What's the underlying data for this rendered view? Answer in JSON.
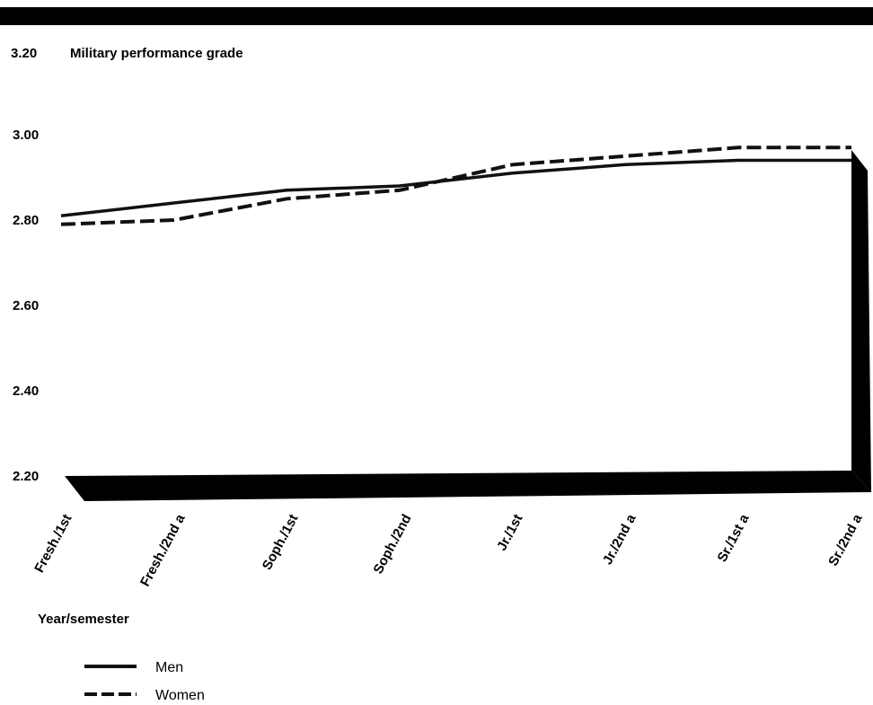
{
  "chart_data": {
    "type": "line",
    "title": "Military performance grade",
    "xlabel": "Year/semester",
    "ylabel": "",
    "categories": [
      "Fresh./1st",
      "Fresh./2nd a",
      "Soph./1st",
      "Soph./2nd",
      "Jr./1st",
      "Jr./2nd a",
      "Sr./1st a",
      "Sr./2nd a"
    ],
    "y_ticks": [
      "2.20",
      "2.40",
      "2.60",
      "2.80",
      "3.00",
      "3.20"
    ],
    "ylim": [
      2.2,
      3.2
    ],
    "grid": false,
    "legend_position": "bottom-left",
    "series": [
      {
        "name": "Men",
        "style": "solid",
        "values": [
          2.81,
          2.84,
          2.87,
          2.88,
          2.91,
          2.93,
          2.94,
          2.94
        ]
      },
      {
        "name": "Women",
        "style": "dashed",
        "values": [
          2.79,
          2.8,
          2.85,
          2.87,
          2.93,
          2.95,
          2.97,
          2.97
        ]
      }
    ],
    "colors": {
      "line": "#111111",
      "floor": "#000000"
    }
  }
}
